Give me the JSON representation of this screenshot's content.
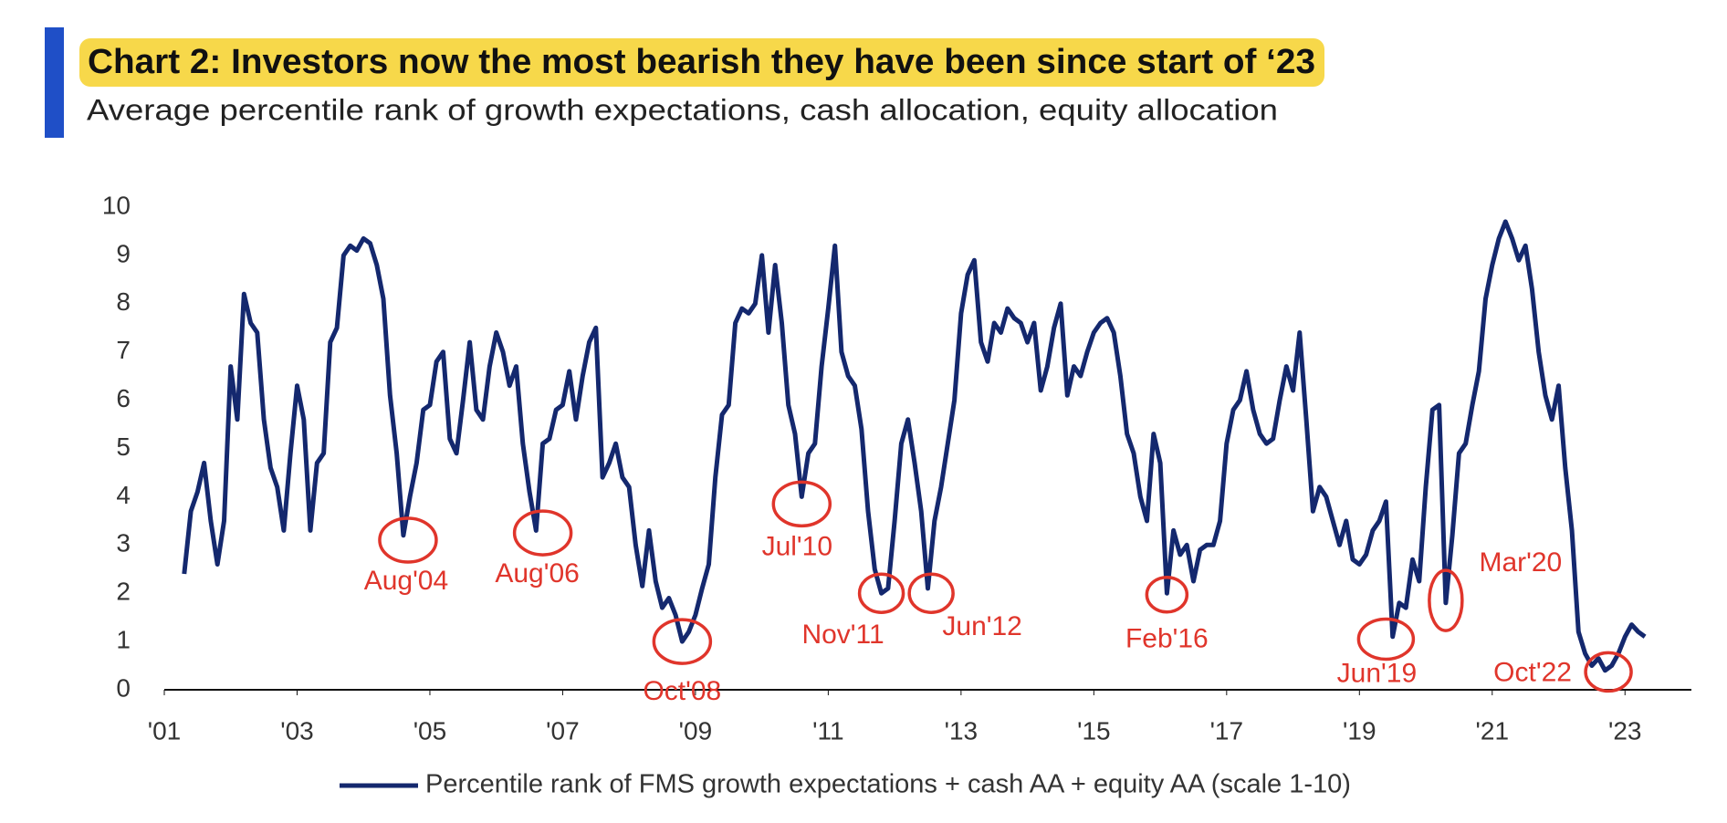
{
  "chart_data": {
    "type": "line",
    "title": "Chart 2: Investors now the most bearish they have been since start of ‘23",
    "subtitle": "Average percentile rank of growth expectations, cash allocation, equity allocation",
    "x": [
      2001.3,
      2001.4,
      2001.5,
      2001.6,
      2001.7,
      2001.8,
      2001.9,
      2002.0,
      2002.1,
      2002.2,
      2002.3,
      2002.4,
      2002.5,
      2002.6,
      2002.7,
      2002.8,
      2002.9,
      2003.0,
      2003.1,
      2003.2,
      2003.3,
      2003.4,
      2003.5,
      2003.6,
      2003.7,
      2003.8,
      2003.9,
      2004.0,
      2004.1,
      2004.2,
      2004.3,
      2004.4,
      2004.5,
      2004.6,
      2004.7,
      2004.8,
      2004.9,
      2005.0,
      2005.1,
      2005.2,
      2005.3,
      2005.4,
      2005.5,
      2005.6,
      2005.7,
      2005.8,
      2005.9,
      2006.0,
      2006.1,
      2006.2,
      2006.3,
      2006.4,
      2006.5,
      2006.6,
      2006.7,
      2006.8,
      2006.9,
      2007.0,
      2007.1,
      2007.2,
      2007.3,
      2007.4,
      2007.5,
      2007.6,
      2007.7,
      2007.8,
      2007.9,
      2008.0,
      2008.1,
      2008.2,
      2008.3,
      2008.4,
      2008.5,
      2008.6,
      2008.7,
      2008.8,
      2008.9,
      2009.0,
      2009.1,
      2009.2,
      2009.3,
      2009.4,
      2009.5,
      2009.6,
      2009.7,
      2009.8,
      2009.9,
      2010.0,
      2010.1,
      2010.2,
      2010.3,
      2010.4,
      2010.5,
      2010.6,
      2010.7,
      2010.8,
      2010.9,
      2011.0,
      2011.1,
      2011.2,
      2011.3,
      2011.4,
      2011.5,
      2011.6,
      2011.7,
      2011.8,
      2011.9,
      2012.0,
      2012.1,
      2012.2,
      2012.3,
      2012.4,
      2012.5,
      2012.6,
      2012.7,
      2012.8,
      2012.9,
      2013.0,
      2013.1,
      2013.2,
      2013.3,
      2013.4,
      2013.5,
      2013.6,
      2013.7,
      2013.8,
      2013.9,
      2014.0,
      2014.1,
      2014.2,
      2014.3,
      2014.4,
      2014.5,
      2014.6,
      2014.7,
      2014.8,
      2014.9,
      2015.0,
      2015.1,
      2015.2,
      2015.3,
      2015.4,
      2015.5,
      2015.6,
      2015.7,
      2015.8,
      2015.9,
      2016.0,
      2016.1,
      2016.2,
      2016.3,
      2016.4,
      2016.5,
      2016.6,
      2016.7,
      2016.8,
      2016.9,
      2017.0,
      2017.1,
      2017.2,
      2017.3,
      2017.4,
      2017.5,
      2017.6,
      2017.7,
      2017.8,
      2017.9,
      2018.0,
      2018.1,
      2018.2,
      2018.3,
      2018.4,
      2018.5,
      2018.6,
      2018.7,
      2018.8,
      2018.9,
      2019.0,
      2019.1,
      2019.2,
      2019.3,
      2019.4,
      2019.5,
      2019.6,
      2019.7,
      2019.8,
      2019.9,
      2020.0,
      2020.1,
      2020.2,
      2020.3,
      2020.4,
      2020.5,
      2020.6,
      2020.7,
      2020.8,
      2020.9,
      2021.0,
      2021.1,
      2021.2,
      2021.3,
      2021.4,
      2021.5,
      2021.6,
      2021.7,
      2021.8,
      2021.9,
      2022.0,
      2022.1,
      2022.2,
      2022.3,
      2022.4,
      2022.5,
      2022.6,
      2022.7,
      2022.8,
      2022.9,
      2023.0,
      2023.1,
      2023.2,
      2023.3
    ],
    "series": [
      {
        "name": "Percentile rank of FMS growth expectations + cash AA + equity AA (scale 1-10)",
        "color": "#14286e",
        "values": [
          2.4,
          3.7,
          4.1,
          4.7,
          3.5,
          2.6,
          3.5,
          6.7,
          5.6,
          8.2,
          7.6,
          7.4,
          5.6,
          4.6,
          4.2,
          3.3,
          4.9,
          6.3,
          5.6,
          3.3,
          4.7,
          4.9,
          7.2,
          7.5,
          9.0,
          9.2,
          9.1,
          9.35,
          9.25,
          8.8,
          8.1,
          6.1,
          4.9,
          3.2,
          4.0,
          4.7,
          5.8,
          5.9,
          6.8,
          7.0,
          5.2,
          4.9,
          6.0,
          7.2,
          5.8,
          5.6,
          6.7,
          7.4,
          7.0,
          6.3,
          6.7,
          5.1,
          4.1,
          3.3,
          5.1,
          5.2,
          5.8,
          5.9,
          6.6,
          5.6,
          6.5,
          7.2,
          7.5,
          4.4,
          4.7,
          5.1,
          4.4,
          4.2,
          3.0,
          2.15,
          3.3,
          2.25,
          1.7,
          1.9,
          1.55,
          1.0,
          1.2,
          1.55,
          2.1,
          2.6,
          4.4,
          5.7,
          5.9,
          7.6,
          7.9,
          7.8,
          8.0,
          9.0,
          7.4,
          8.8,
          7.6,
          5.9,
          5.3,
          4.0,
          4.9,
          5.1,
          6.7,
          7.9,
          9.2,
          7.0,
          6.5,
          6.3,
          5.4,
          3.7,
          2.5,
          2.0,
          2.1,
          3.5,
          5.1,
          5.6,
          4.7,
          3.7,
          2.1,
          3.5,
          4.2,
          5.1,
          6.0,
          7.8,
          8.6,
          8.9,
          7.2,
          6.8,
          7.6,
          7.4,
          7.9,
          7.7,
          7.6,
          7.2,
          7.6,
          6.2,
          6.7,
          7.5,
          8.0,
          6.1,
          6.7,
          6.5,
          7.0,
          7.4,
          7.6,
          7.7,
          7.4,
          6.5,
          5.3,
          4.9,
          4.0,
          3.5,
          5.3,
          4.7,
          2.0,
          3.3,
          2.8,
          3.0,
          2.25,
          2.9,
          3.0,
          3.0,
          3.5,
          5.1,
          5.8,
          6.0,
          6.6,
          5.8,
          5.3,
          5.1,
          5.2,
          6.0,
          6.7,
          6.2,
          7.4,
          5.6,
          3.7,
          4.2,
          4.0,
          3.5,
          3.0,
          3.5,
          2.7,
          2.6,
          2.8,
          3.3,
          3.5,
          3.9,
          1.1,
          1.8,
          1.7,
          2.7,
          2.25,
          4.2,
          5.8,
          5.9,
          1.8,
          3.2,
          4.9,
          5.1,
          5.9,
          6.6,
          8.1,
          8.8,
          9.35,
          9.7,
          9.35,
          8.9,
          9.2,
          8.3,
          7.0,
          6.1,
          5.6,
          6.3,
          4.6,
          3.3,
          1.2,
          0.75,
          0.5,
          0.65,
          0.4,
          0.5,
          0.75,
          1.1,
          1.35,
          1.2,
          1.1
        ]
      }
    ],
    "xlim": [
      2001,
      2024
    ],
    "xticks": [
      {
        "value": 2001,
        "label": "'01"
      },
      {
        "value": 2003,
        "label": "'03"
      },
      {
        "value": 2005,
        "label": "'05"
      },
      {
        "value": 2007,
        "label": "'07"
      },
      {
        "value": 2009,
        "label": "'09"
      },
      {
        "value": 2011,
        "label": "'11"
      },
      {
        "value": 2013,
        "label": "'13"
      },
      {
        "value": 2015,
        "label": "'15"
      },
      {
        "value": 2017,
        "label": "'17"
      },
      {
        "value": 2019,
        "label": "'19"
      },
      {
        "value": 2021,
        "label": "'21"
      },
      {
        "value": 2023,
        "label": "'23"
      }
    ],
    "ylim": [
      0,
      10
    ],
    "yticks": [
      0,
      1,
      2,
      3,
      4,
      5,
      6,
      7,
      8,
      9,
      10
    ],
    "grid": false,
    "annotations": [
      {
        "text": "Aug'04",
        "x": 2004.67,
        "y": 3.1
      },
      {
        "text": "Aug'06",
        "x": 2006.7,
        "y": 3.25
      },
      {
        "text": "Oct'08",
        "x": 2008.8,
        "y": 1.0
      },
      {
        "text": "Jul'10",
        "x": 2010.6,
        "y": 3.85
      },
      {
        "text": "Nov'11",
        "x": 2011.8,
        "y": 2.0
      },
      {
        "text": "Jun'12",
        "x": 2012.55,
        "y": 2.0
      },
      {
        "text": "Feb'16",
        "x": 2016.1,
        "y": 1.97
      },
      {
        "text": "Jun'19",
        "x": 2019.4,
        "y": 1.05
      },
      {
        "text": "Mar'20",
        "x": 2020.3,
        "y": 1.85
      },
      {
        "text": "Oct'22",
        "x": 2022.75,
        "y": 0.37
      }
    ]
  }
}
